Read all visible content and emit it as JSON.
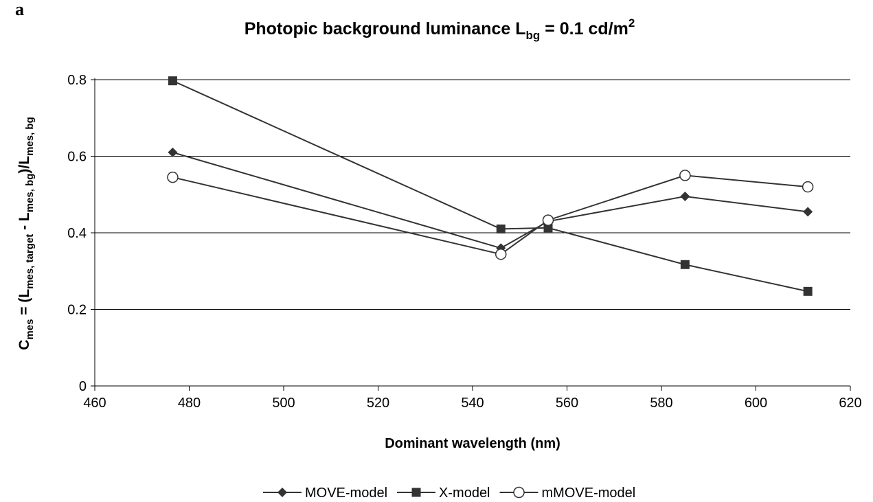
{
  "panel_label": "a",
  "chart_data": {
    "type": "line",
    "title": [
      "Photopic background luminance L",
      "bg",
      " = 0.1 cd/m",
      "2"
    ],
    "y_label": [
      "C",
      "mes",
      " = (L",
      "mes, target",
      " - L",
      "mes, bg",
      ")/L",
      "mes, bg"
    ],
    "x_label": "Dominant wavelength (nm)",
    "x": [
      476.5,
      546,
      556,
      585,
      611
    ],
    "series": [
      {
        "name": "MOVE-model",
        "color": "#333333",
        "marker": "diamond",
        "values": [
          0.61,
          0.36,
          0.43,
          0.495,
          0.455
        ]
      },
      {
        "name": "X-model",
        "color": "#333333",
        "marker": "square",
        "values": [
          0.797,
          0.41,
          0.413,
          0.317,
          0.247
        ]
      },
      {
        "name": "mMOVE-model",
        "color": "#333333",
        "marker": "circle",
        "values": [
          0.545,
          0.344,
          0.433,
          0.55,
          0.52
        ]
      }
    ],
    "xlim": [
      460,
      620
    ],
    "xticks": [
      460,
      480,
      500,
      520,
      540,
      560,
      580,
      600,
      620
    ],
    "ylim": [
      0,
      0.8
    ],
    "yticks": [
      0,
      0.2,
      0.4,
      0.6,
      0.8
    ],
    "grid": true,
    "legend": "bottom"
  }
}
